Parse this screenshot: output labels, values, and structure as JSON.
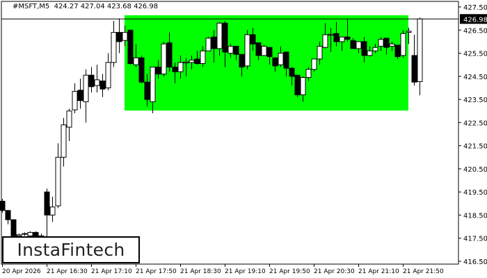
{
  "header": {
    "symbol": "#MSFT,M5",
    "ohlc": "424.27 427.04 423.68 426.98"
  },
  "logo": "InstaFintech",
  "colors": {
    "bull_body": "#ffffff",
    "bear_body": "#000000",
    "pattern_fill": "#00ff00",
    "background": "#ffffff",
    "price_label_bg": "#000000"
  },
  "chart_data": {
    "type": "candlestick",
    "ylim": [
      416.5,
      427.5
    ],
    "y_ticks": [
      "427.50",
      "426.50",
      "425.50",
      "424.50",
      "423.50",
      "422.50",
      "421.50",
      "420.50",
      "419.50",
      "418.50",
      "417.50",
      "416.50"
    ],
    "x_ticks": [
      {
        "label": "20 Apr 2026",
        "index": 0
      },
      {
        "label": "21 Apr 16:30",
        "index": 8
      },
      {
        "label": "21 Apr 17:10",
        "index": 16
      },
      {
        "label": "21 Apr 17:50",
        "index": 24
      },
      {
        "label": "21 Apr 18:30",
        "index": 32
      },
      {
        "label": "21 Apr 19:10",
        "index": 40
      },
      {
        "label": "21 Apr 19:50",
        "index": 48
      },
      {
        "label": "21 Apr 20:30",
        "index": 56
      },
      {
        "label": "21 Apr 21:10",
        "index": 64
      },
      {
        "label": "21 Apr 21:50",
        "index": 72
      }
    ],
    "current_price": "426.98",
    "pattern_rectangle": {
      "start_index": 22,
      "end_index": 73,
      "top": 427.14,
      "bottom": 423.02
    },
    "candles": [
      [
        419.1,
        419.2,
        418.6,
        418.7
      ],
      [
        418.7,
        418.7,
        418.1,
        418.3
      ],
      [
        418.3,
        418.3,
        417.4,
        417.6
      ],
      [
        417.6,
        417.7,
        417.5,
        417.65
      ],
      [
        417.7,
        417.75,
        417.6,
        417.7
      ],
      [
        417.6,
        417.8,
        417.55,
        417.75
      ],
      [
        417.75,
        417.8,
        417.5,
        417.6
      ],
      [
        417.6,
        417.7,
        417.5,
        417.6
      ],
      [
        419.5,
        419.65,
        417.5,
        418.5
      ],
      [
        418.5,
        419.3,
        418.2,
        418.85
      ],
      [
        418.9,
        421.6,
        418.8,
        421.0
      ],
      [
        421.0,
        422.7,
        420.6,
        422.4
      ],
      [
        422.3,
        423.1,
        421.7,
        423.0
      ],
      [
        423.05,
        424.2,
        422.9,
        423.85
      ],
      [
        423.9,
        424.4,
        423.1,
        423.45
      ],
      [
        423.4,
        424.8,
        422.5,
        424.55
      ],
      [
        424.55,
        424.9,
        423.8,
        424.05
      ],
      [
        424.1,
        425.0,
        423.8,
        424.35
      ],
      [
        424.3,
        424.6,
        423.6,
        423.95
      ],
      [
        424.0,
        425.5,
        423.9,
        425.1
      ],
      [
        425.1,
        426.9,
        424.9,
        426.4
      ],
      [
        426.4,
        427.0,
        425.5,
        426.0
      ],
      [
        426.05,
        426.7,
        425.8,
        426.4
      ],
      [
        426.5,
        426.5,
        425.0,
        425.05
      ],
      [
        425.0,
        425.9,
        424.9,
        425.3
      ],
      [
        425.3,
        425.4,
        424.2,
        424.25
      ],
      [
        424.25,
        424.6,
        423.2,
        423.5
      ],
      [
        423.4,
        424.9,
        422.9,
        424.9
      ],
      [
        424.9,
        425.2,
        424.4,
        424.6
      ],
      [
        424.6,
        426.0,
        424.5,
        425.9
      ],
      [
        425.95,
        426.4,
        424.7,
        424.9
      ],
      [
        424.9,
        425.1,
        424.2,
        424.7
      ],
      [
        424.7,
        425.4,
        424.4,
        425.1
      ],
      [
        425.08,
        425.3,
        424.5,
        425.12
      ],
      [
        425.1,
        425.4,
        424.8,
        425.2
      ],
      [
        425.25,
        425.6,
        425.0,
        425.05
      ],
      [
        425.05,
        425.8,
        424.9,
        425.6
      ],
      [
        425.6,
        426.2,
        425.6,
        426.15
      ],
      [
        426.2,
        426.5,
        425.1,
        425.7
      ],
      [
        425.7,
        426.85,
        425.4,
        426.8
      ],
      [
        426.8,
        426.9,
        424.9,
        425.55
      ],
      [
        425.5,
        425.9,
        425.3,
        425.8
      ],
      [
        425.8,
        425.8,
        425.2,
        425.45
      ],
      [
        425.45,
        425.45,
        424.5,
        424.9
      ],
      [
        424.95,
        426.5,
        424.8,
        426.3
      ],
      [
        426.3,
        426.6,
        425.6,
        425.9
      ],
      [
        425.95,
        425.95,
        425.2,
        425.4
      ],
      [
        425.4,
        425.85,
        425.4,
        425.8
      ],
      [
        425.75,
        425.75,
        425.0,
        425.35
      ],
      [
        425.3,
        425.3,
        424.7,
        424.95
      ],
      [
        425.0,
        425.8,
        424.9,
        425.5
      ],
      [
        425.55,
        425.55,
        424.5,
        424.85
      ],
      [
        424.85,
        424.9,
        424.1,
        424.5
      ],
      [
        424.55,
        424.55,
        423.6,
        423.7
      ],
      [
        423.7,
        424.5,
        423.4,
        424.45
      ],
      [
        424.45,
        424.9,
        424.3,
        424.8
      ],
      [
        424.8,
        425.25,
        424.7,
        425.25
      ],
      [
        425.25,
        426.0,
        425.0,
        425.8
      ],
      [
        425.75,
        426.8,
        425.7,
        426.3
      ],
      [
        426.28,
        426.6,
        425.55,
        426.32
      ],
      [
        426.35,
        426.85,
        425.8,
        426.0
      ],
      [
        426.0,
        426.2,
        425.6,
        426.2
      ],
      [
        426.2,
        427.0,
        426.0,
        426.1
      ],
      [
        426.05,
        426.15,
        425.7,
        425.7
      ],
      [
        425.7,
        426.0,
        425.5,
        426.0
      ],
      [
        426.0,
        426.2,
        425.1,
        425.4
      ],
      [
        425.4,
        425.8,
        425.35,
        425.6
      ],
      [
        425.6,
        425.9,
        425.5,
        425.75
      ],
      [
        425.8,
        426.2,
        425.6,
        426.1
      ],
      [
        426.15,
        426.15,
        425.45,
        425.75
      ],
      [
        425.8,
        426.0,
        425.6,
        425.9
      ],
      [
        425.85,
        425.85,
        425.25,
        425.35
      ],
      [
        425.4,
        426.5,
        425.3,
        426.35
      ],
      [
        426.4,
        426.6,
        425.9,
        426.45
      ],
      [
        425.4,
        426.3,
        424.1,
        424.25
      ],
      [
        424.27,
        427.04,
        423.68,
        426.98
      ]
    ]
  }
}
